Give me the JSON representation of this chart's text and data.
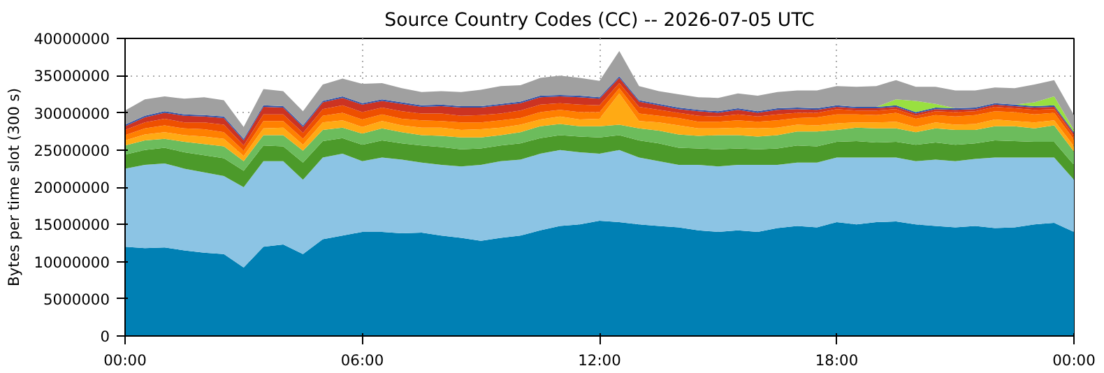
{
  "chart_data": {
    "type": "area",
    "stacked": true,
    "title": "Source Country Codes (CC) -- 2026-07-05 UTC",
    "ylabel": "Bytes per time slot (300 s)",
    "x": [
      0,
      0.5,
      1,
      1.5,
      2,
      2.5,
      3,
      3.5,
      4,
      4.5,
      5,
      5.5,
      6,
      6.5,
      7,
      7.5,
      8,
      8.5,
      9,
      9.5,
      10,
      10.5,
      11,
      11.5,
      12,
      12.5,
      13,
      13.5,
      14,
      14.5,
      15,
      15.5,
      16,
      16.5,
      17,
      17.5,
      18,
      18.5,
      19,
      19.5,
      20,
      20.5,
      21,
      21.5,
      22,
      22.5,
      23,
      23.5,
      24
    ],
    "xlim": [
      0,
      24
    ],
    "xticks": [
      {
        "value": 0,
        "label": "00:00"
      },
      {
        "value": 6,
        "label": "06:00"
      },
      {
        "value": 12,
        "label": "12:00"
      },
      {
        "value": 18,
        "label": "18:00"
      },
      {
        "value": 24,
        "label": "00:00"
      }
    ],
    "ylim": [
      0,
      40000000
    ],
    "yticks": [
      0,
      5000000,
      10000000,
      15000000,
      20000000,
      25000000,
      30000000,
      35000000,
      40000000
    ],
    "grid": true,
    "series": [
      {
        "color": "#0080b4",
        "values": [
          12000000.0,
          11800000.0,
          11900000.0,
          11500000.0,
          11200000.0,
          11000000.0,
          9200000.0,
          12000000.0,
          12300000.0,
          11000000.0,
          13000000.0,
          13500000.0,
          14000000.0,
          14000000.0,
          13800000.0,
          13900000.0,
          13500000.0,
          13200000.0,
          12800000.0,
          13200000.0,
          13500000.0,
          14200000.0,
          14800000.0,
          15000000.0,
          15500000.0,
          15300000.0,
          15000000.0,
          14800000.0,
          14600000.0,
          14200000.0,
          14000000.0,
          14200000.0,
          14000000.0,
          14500000.0,
          14800000.0,
          14600000.0,
          15300000.0,
          15000000.0,
          15300000.0,
          15400000.0,
          15000000.0,
          14800000.0,
          14600000.0,
          14800000.0,
          14500000.0,
          14600000.0,
          15000000.0,
          15200000.0,
          14000000.0
        ]
      },
      {
        "color": "#8cc4e4",
        "values": [
          10500000.0,
          11200000.0,
          11300000.0,
          11000000.0,
          10800000.0,
          10500000.0,
          10800000.0,
          11500000.0,
          11200000.0,
          10000000.0,
          11000000.0,
          11000000.0,
          9500000.0,
          10000000.0,
          9900000.0,
          9400000.0,
          9500000.0,
          9600000.0,
          10200000.0,
          10300000.0,
          10200000.0,
          10300000.0,
          10200000.0,
          9700000.0,
          9000000.0,
          9700000.0,
          9000000.0,
          8700000.0,
          8400000.0,
          8800000.0,
          8800000.0,
          8800000.0,
          9000000.0,
          8500000.0,
          8500000.0,
          8700000.0,
          8700000.0,
          9000000.0,
          8700000.0,
          8600000.0,
          8500000.0,
          8900000.0,
          8900000.0,
          9000000.0,
          9500000.0,
          9400000.0,
          9000000.0,
          8800000.0,
          7000000.0
        ]
      },
      {
        "color": "#4c9a2a",
        "values": [
          1900000.0,
          2000000.0,
          2100000.0,
          2200000.0,
          2300000.0,
          2400000.0,
          2200000.0,
          2100000.0,
          2000000.0,
          2300000.0,
          2200000.0,
          2100000.0,
          2200000.0,
          2300000.0,
          2200000.0,
          2300000.0,
          2400000.0,
          2300000.0,
          2200000.0,
          2100000.0,
          2200000.0,
          2100000.0,
          2000000.0,
          2100000.0,
          2200000.0,
          2000000.0,
          2300000.0,
          2400000.0,
          2300000.0,
          2200000.0,
          2300000.0,
          2200000.0,
          2100000.0,
          2200000.0,
          2300000.0,
          2200000.0,
          2100000.0,
          2200000.0,
          2000000.0,
          2100000.0,
          2200000.0,
          2300000.0,
          2200000.0,
          2100000.0,
          2300000.0,
          2200000.0,
          2100000.0,
          2100000.0,
          2000000.0
        ]
      },
      {
        "color": "#6cbc5c",
        "values": [
          1200000.0,
          1300000.0,
          1200000.0,
          1400000.0,
          1500000.0,
          1600000.0,
          1300000.0,
          1400000.0,
          1500000.0,
          1600000.0,
          1500000.0,
          1400000.0,
          1500000.0,
          1600000.0,
          1500000.0,
          1400000.0,
          1500000.0,
          1600000.0,
          1500000.0,
          1400000.0,
          1500000.0,
          1600000.0,
          1500000.0,
          1400000.0,
          1500000.0,
          1400000.0,
          1600000.0,
          1700000.0,
          1800000.0,
          1700000.0,
          1900000.0,
          1800000.0,
          1700000.0,
          1800000.0,
          1900000.0,
          2000000.0,
          1600000.0,
          1800000.0,
          1900000.0,
          1800000.0,
          1700000.0,
          1900000.0,
          2000000.0,
          1800000.0,
          1900000.0,
          2000000.0,
          1800000.0,
          2200000.0,
          1800000.0
        ]
      },
      {
        "color": "#ffaa14",
        "values": [
          700000.0,
          800000.0,
          900000.0,
          900000.0,
          1000000.0,
          1000000.0,
          700000.0,
          900000.0,
          1000000.0,
          800000.0,
          1000000.0,
          1000000.0,
          900000.0,
          1000000.0,
          900000.0,
          1000000.0,
          1100000.0,
          1000000.0,
          1100000.0,
          1000000.0,
          1000000.0,
          900000.0,
          1000000.0,
          900000.0,
          1000000.0,
          4200000.0,
          1000000.0,
          1100000.0,
          1200000.0,
          1000000.0,
          900000.0,
          1000000.0,
          1100000.0,
          1000000.0,
          900000.0,
          800000.0,
          900000.0,
          700000.0,
          800000.0,
          900000.0,
          700000.0,
          800000.0,
          700000.0,
          800000.0,
          900000.0,
          700000.0,
          800000.0,
          700000.0,
          700000.0
        ]
      },
      {
        "color": "#ff8000",
        "values": [
          700000.0,
          800000.0,
          900000.0,
          900000.0,
          1000000.0,
          900000.0,
          700000.0,
          1000000.0,
          900000.0,
          800000.0,
          900000.0,
          1000000.0,
          1000000.0,
          900000.0,
          900000.0,
          1000000.0,
          900000.0,
          1000000.0,
          900000.0,
          1000000.0,
          900000.0,
          1000000.0,
          900000.0,
          1000000.0,
          900000.0,
          700000.0,
          1000000.0,
          900000.0,
          1000000.0,
          900000.0,
          900000.0,
          1000000.0,
          900000.0,
          1000000.0,
          900000.0,
          1100000.0,
          1200000.0,
          1100000.0,
          1000000.0,
          1200000.0,
          1100000.0,
          1000000.0,
          1100000.0,
          1200000.0,
          1100000.0,
          1200000.0,
          1100000.0,
          1000000.0,
          900000.0
        ]
      },
      {
        "color": "#ee5000",
        "values": [
          700000.0,
          800000.0,
          900000.0,
          800000.0,
          900000.0,
          1000000.0,
          700000.0,
          900000.0,
          900000.0,
          800000.0,
          900000.0,
          1000000.0,
          1000000.0,
          900000.0,
          1000000.0,
          900000.0,
          1000000.0,
          900000.0,
          1000000.0,
          900000.0,
          1000000.0,
          1000000.0,
          900000.0,
          1000000.0,
          900000.0,
          700000.0,
          900000.0,
          800000.0,
          700000.0,
          800000.0,
          700000.0,
          800000.0,
          700000.0,
          800000.0,
          700000.0,
          600000.0,
          700000.0,
          500000.0,
          600000.0,
          500000.0,
          400000.0,
          500000.0,
          600000.0,
          500000.0,
          600000.0,
          500000.0,
          600000.0,
          500000.0,
          500000.0
        ]
      },
      {
        "color": "#cc3322",
        "values": [
          500000.0,
          700000.0,
          800000.0,
          900000.0,
          800000.0,
          900000.0,
          700000.0,
          1000000.0,
          900000.0,
          800000.0,
          900000.0,
          1000000.0,
          1000000.0,
          900000.0,
          1000000.0,
          900000.0,
          1000000.0,
          1100000.0,
          1000000.0,
          1100000.0,
          1000000.0,
          1000000.0,
          900000.0,
          1000000.0,
          900000.0,
          700000.0,
          700000.0,
          600000.0,
          500000.0,
          600000.0,
          500000.0,
          600000.0,
          500000.0,
          600000.0,
          500000.0,
          400000.0,
          300000.0,
          300000.0,
          300000.0,
          300000.0,
          300000.0,
          300000.0,
          300000.0,
          300000.0,
          300000.0,
          300000.0,
          300000.0,
          300000.0,
          300000.0
        ]
      },
      {
        "color": "#3355aa",
        "values": [
          200000.0,
          200000.0,
          200000.0,
          200000.0,
          200000.0,
          200000.0,
          200000.0,
          200000.0,
          200000.0,
          200000.0,
          200000.0,
          200000.0,
          200000.0,
          200000.0,
          200000.0,
          200000.0,
          200000.0,
          200000.0,
          200000.0,
          200000.0,
          200000.0,
          200000.0,
          200000.0,
          200000.0,
          200000.0,
          200000.0,
          200000.0,
          200000.0,
          200000.0,
          200000.0,
          200000.0,
          200000.0,
          200000.0,
          200000.0,
          200000.0,
          200000.0,
          200000.0,
          200000.0,
          200000.0,
          200000.0,
          200000.0,
          200000.0,
          200000.0,
          200000.0,
          200000.0,
          200000.0,
          200000.0,
          200000.0,
          200000.0
        ]
      },
      {
        "color": "#99e040",
        "values": [
          0,
          0,
          0,
          0,
          0,
          0,
          0,
          0,
          0,
          0,
          0,
          0,
          0,
          0,
          0,
          0,
          0,
          0,
          0,
          0,
          0,
          0,
          0,
          0,
          0,
          0,
          0,
          0,
          0,
          0,
          0,
          0,
          0,
          0,
          0,
          0,
          0,
          0,
          0,
          800000.0,
          1500000.0,
          500000.0,
          0,
          0,
          0,
          0,
          500000.0,
          1200000.0,
          300000.0
        ]
      },
      {
        "color": "#a0a0a0",
        "values": [
          1900000.0,
          2200000.0,
          2000000.0,
          2100000.0,
          2400000.0,
          2200000.0,
          1600000.0,
          2200000.0,
          2000000.0,
          1900000.0,
          2200000.0,
          2400000.0,
          2600000.0,
          2200000.0,
          1900000.0,
          1800000.0,
          1800000.0,
          1900000.0,
          2200000.0,
          2400000.0,
          2200000.0,
          2400000.0,
          2600000.0,
          2400000.0,
          2200000.0,
          3400000.0,
          1900000.0,
          1700000.0,
          1800000.0,
          1700000.0,
          1800000.0,
          2000000.0,
          2100000.0,
          2200000.0,
          2300000.0,
          2400000.0,
          2600000.0,
          2700000.0,
          2800000.0,
          2600000.0,
          1900000.0,
          2300000.0,
          2400000.0,
          2300000.0,
          2100000.0,
          2200000.0,
          2400000.0,
          2200000.0,
          2000000.0
        ]
      }
    ]
  }
}
